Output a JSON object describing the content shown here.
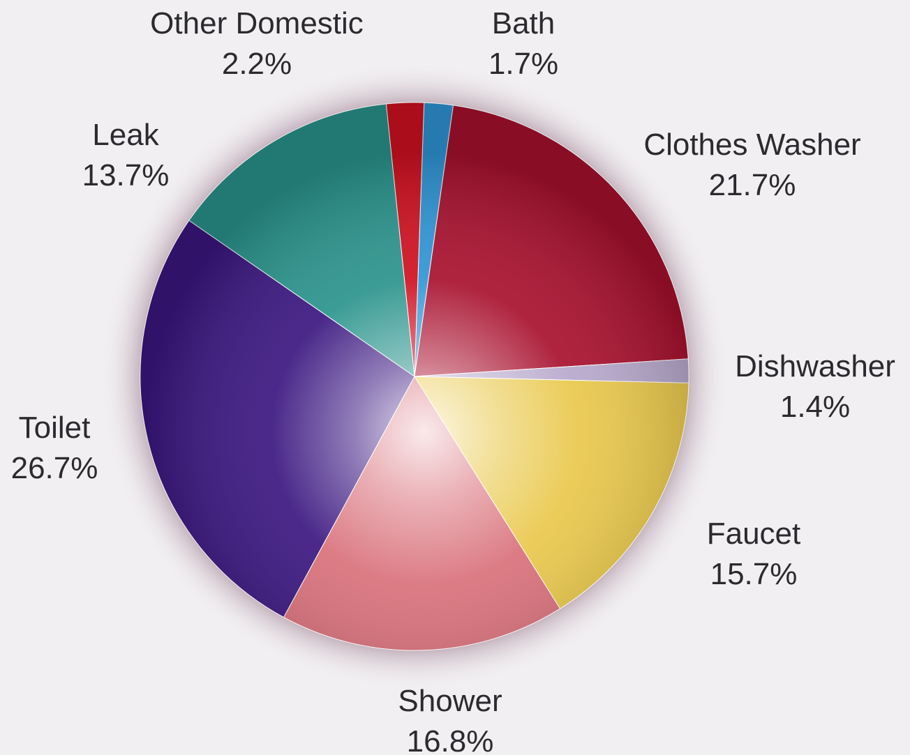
{
  "chart_data": {
    "type": "pie",
    "start_label": "Bath",
    "direction": "clockwise",
    "slices": [
      {
        "label": "Bath",
        "value": 1.7,
        "display": "1.7%",
        "color": "#2f95d6"
      },
      {
        "label": "Clothes Washer",
        "value": 21.7,
        "display": "21.7%",
        "color": "#a8102e"
      },
      {
        "label": "Dishwasher",
        "value": 1.4,
        "display": "1.4%",
        "color": "#b7a8cc"
      },
      {
        "label": "Faucet",
        "value": 15.7,
        "display": "15.7%",
        "color": "#e9c84b"
      },
      {
        "label": "Shower",
        "value": 16.8,
        "display": "16.8%",
        "color": "#d9707a"
      },
      {
        "label": "Toilet",
        "value": 26.7,
        "display": "26.7%",
        "color": "#3a1680"
      },
      {
        "label": "Leak",
        "value": 13.7,
        "display": "13.7%",
        "color": "#2a938c"
      },
      {
        "label": "Other Domestic",
        "value": 2.2,
        "display": "2.2%",
        "color": "#d01020"
      }
    ]
  }
}
